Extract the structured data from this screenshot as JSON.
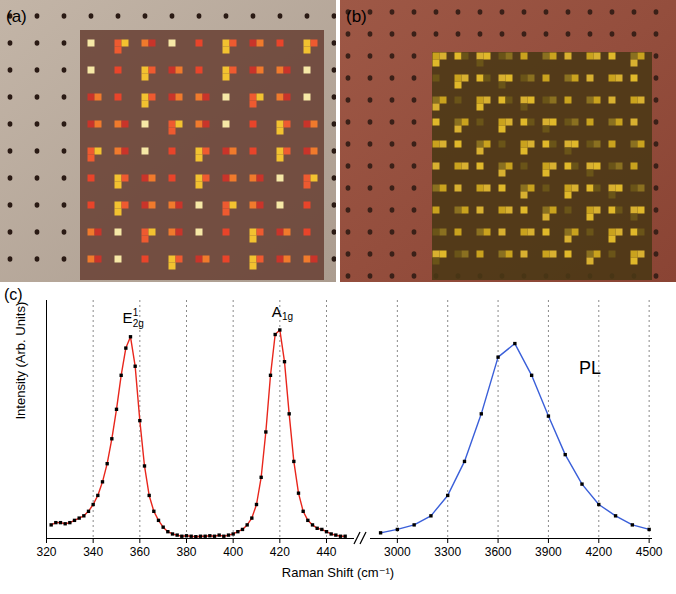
{
  "panels": [
    {
      "label": "(a)"
    },
    {
      "label": "(b)"
    }
  ],
  "chart_label": "(c)",
  "chart_data": [
    {
      "type": "line",
      "xlabel": "Raman Shift (cm⁻¹)",
      "ylabel": "Intensity (Arb. Units)",
      "x": [
        322,
        324,
        326,
        328,
        330,
        332,
        334,
        336,
        338,
        340,
        342,
        344,
        346,
        348,
        350,
        352,
        354,
        356,
        358,
        360,
        362,
        364,
        366,
        368,
        370,
        372,
        374,
        376,
        378,
        380,
        382,
        384,
        386,
        388,
        390,
        392,
        394,
        396,
        398,
        400,
        402,
        404,
        406,
        408,
        410,
        412,
        414,
        416,
        418,
        420,
        422,
        424,
        426,
        428,
        430,
        432,
        434,
        436,
        438,
        440,
        442,
        444,
        446,
        448
      ],
      "values": [
        0.06,
        0.07,
        0.07,
        0.065,
        0.07,
        0.08,
        0.09,
        0.1,
        0.12,
        0.15,
        0.19,
        0.25,
        0.33,
        0.44,
        0.57,
        0.72,
        0.84,
        0.89,
        0.76,
        0.52,
        0.32,
        0.19,
        0.12,
        0.08,
        0.05,
        0.03,
        0.02,
        0.015,
        0.01,
        0.012,
        0.01,
        0.008,
        0.01,
        0.01,
        0.012,
        0.01,
        0.015,
        0.01,
        0.015,
        0.02,
        0.03,
        0.04,
        0.06,
        0.09,
        0.15,
        0.27,
        0.47,
        0.72,
        0.9,
        0.92,
        0.78,
        0.55,
        0.34,
        0.2,
        0.12,
        0.08,
        0.06,
        0.045,
        0.04,
        0.03,
        0.02,
        0.015,
        0.01,
        0.01
      ],
      "color": "#e8261c",
      "marker": "square",
      "xlim": [
        320,
        452
      ],
      "xticks": [
        320,
        340,
        360,
        380,
        400,
        420,
        440
      ],
      "ylim": [
        0,
        1.05
      ],
      "grid": true,
      "tick_labels": "x",
      "annotations": [
        {
          "text": "E",
          "superscript": "1",
          "subscript": "2g",
          "x": 356,
          "y": 0.97
        },
        {
          "text": "A",
          "subscript": "1g",
          "x": 420,
          "y": 1.0
        }
      ]
    },
    {
      "type": "line",
      "x": [
        2900,
        3000,
        3100,
        3200,
        3300,
        3400,
        3500,
        3600,
        3700,
        3800,
        3900,
        4000,
        4100,
        4200,
        4300,
        4400,
        4500
      ],
      "values": [
        0.025,
        0.04,
        0.06,
        0.1,
        0.19,
        0.34,
        0.55,
        0.8,
        0.86,
        0.72,
        0.54,
        0.37,
        0.24,
        0.15,
        0.1,
        0.06,
        0.04
      ],
      "color": "#3a5fd9",
      "marker": "square",
      "xlim": [
        2840,
        4520
      ],
      "xticks": [
        3000,
        3300,
        3600,
        3900,
        4200,
        4500
      ],
      "ylim": [
        0,
        1.05
      ],
      "grid": true,
      "tick_labels": "x",
      "annotations": [
        {
          "text": "PL",
          "x": 4130,
          "y": 0.75
        }
      ]
    }
  ]
}
